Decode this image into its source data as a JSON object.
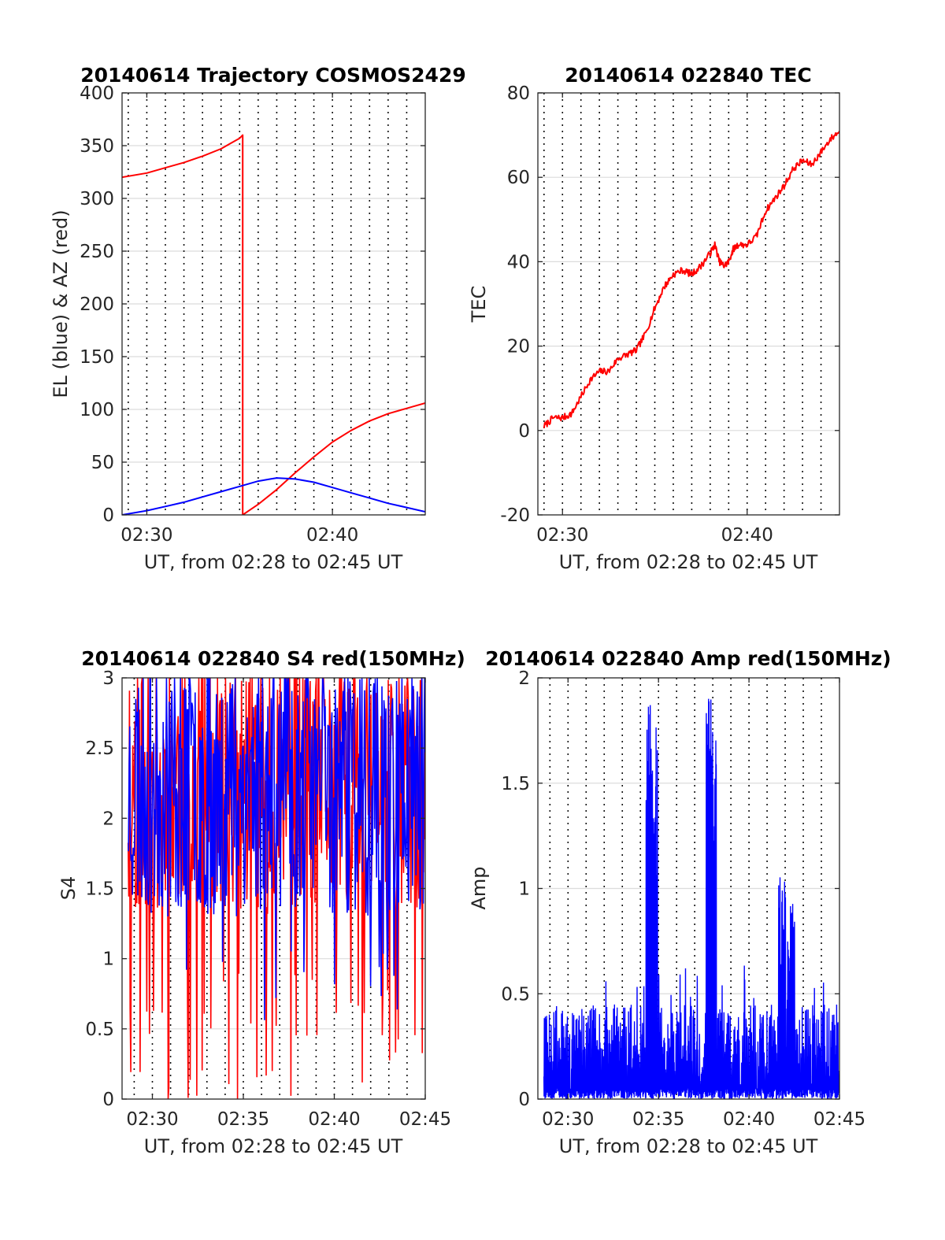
{
  "chart_data": [
    {
      "type": "line",
      "title": "20140614 Trajectory COSMOS2429",
      "xlabel": "UT, from 02:28 to 02:45 UT",
      "ylabel": "EL (blue) & AZ (red)",
      "xlim": [
        "02:28:40",
        "02:45:00"
      ],
      "ylim": [
        0,
        400
      ],
      "xticks": [
        "02:30",
        "02:40"
      ],
      "yticks": [
        0,
        50,
        100,
        150,
        200,
        250,
        300,
        350,
        400
      ],
      "grid": true,
      "colors": {
        "az": "#ff0000",
        "el": "#0000ff"
      },
      "series": [
        {
          "color": "#ff0000",
          "x": [
            "02:28:40",
            "02:30:00",
            "02:31:00",
            "02:32:00",
            "02:33:00",
            "02:34:00",
            "02:34:30",
            "02:35:00",
            "02:35:10",
            "02:35:10",
            "02:35:30",
            "02:36:00",
            "02:37:00",
            "02:38:00",
            "02:39:00",
            "02:40:00",
            "02:41:00",
            "02:42:00",
            "02:43:00",
            "02:44:00",
            "02:45:00"
          ],
          "values": [
            320,
            324,
            329,
            334,
            340,
            347,
            352,
            357,
            360,
            0,
            4,
            10,
            24,
            40,
            55,
            69,
            80,
            89,
            96,
            101,
            106
          ]
        },
        {
          "color": "#0000ff",
          "x": [
            "02:28:40",
            "02:30:00",
            "02:31:00",
            "02:32:00",
            "02:33:00",
            "02:34:00",
            "02:35:00",
            "02:36:00",
            "02:36:40",
            "02:37:00",
            "02:38:00",
            "02:39:00",
            "02:40:00",
            "02:41:00",
            "02:42:00",
            "02:43:00",
            "02:44:00",
            "02:45:00"
          ],
          "values": [
            0,
            4,
            8,
            12,
            17,
            22,
            27,
            32,
            34,
            35,
            34,
            31,
            26,
            21,
            16,
            11,
            7,
            3
          ]
        }
      ]
    },
    {
      "type": "line",
      "title": "20140614 022840 TEC",
      "xlabel": "UT, from 02:28 to 02:45 UT",
      "ylabel": "TEC",
      "xlim": [
        "02:28:40",
        "02:45:00"
      ],
      "ylim": [
        -20,
        80
      ],
      "xticks": [
        "02:30",
        "02:40"
      ],
      "yticks": [
        -20,
        0,
        20,
        40,
        60,
        80
      ],
      "grid": true,
      "series": [
        {
          "color": "#ff0000",
          "x": [
            "02:29:00",
            "02:29:30",
            "02:30:00",
            "02:30:30",
            "02:31:00",
            "02:31:30",
            "02:32:00",
            "02:32:30",
            "02:33:00",
            "02:33:30",
            "02:34:00",
            "02:34:30",
            "02:35:00",
            "02:35:30",
            "02:36:00",
            "02:36:30",
            "02:37:00",
            "02:37:30",
            "02:38:00",
            "02:38:15",
            "02:38:30",
            "02:38:45",
            "02:39:00",
            "02:39:15",
            "02:39:30",
            "02:40:00",
            "02:40:30",
            "02:41:00",
            "02:41:30",
            "02:42:00",
            "02:42:30",
            "02:43:00",
            "02:43:30",
            "02:44:00",
            "02:44:30",
            "02:45:00"
          ],
          "values": [
            1,
            3,
            3,
            4,
            8,
            12,
            14,
            14,
            17,
            18,
            19,
            23,
            29,
            34,
            37,
            38,
            37,
            39,
            42,
            44,
            40,
            39,
            40,
            43,
            44,
            44,
            46,
            52,
            55,
            58,
            62,
            64,
            63,
            66,
            69,
            71
          ]
        }
      ]
    },
    {
      "type": "line",
      "title": "20140614 022840 S4 red(150MHz)",
      "xlabel": "UT, from 02:28 to 02:45 UT",
      "ylabel": "S4",
      "xlim": [
        "02:28:20",
        "02:45:00"
      ],
      "ylim": [
        0,
        3
      ],
      "xticks": [
        "02:30",
        "02:35",
        "02:40",
        "02:45"
      ],
      "yticks": [
        0,
        0.5,
        1,
        1.5,
        2,
        2.5,
        3
      ],
      "grid": true,
      "series": [
        {
          "color": "#ff0000",
          "note_values": "noisy signal between 0 and 3"
        },
        {
          "color": "#0000ff",
          "note_values": "noisy signal mostly between 1.2 and 3"
        }
      ]
    },
    {
      "type": "line",
      "title": "20140614 022840 Amp red(150MHz)",
      "xlabel": "UT, from 02:28 to 02:45 UT",
      "ylabel": "Amp",
      "xlim": [
        "02:28:20",
        "02:45:00"
      ],
      "ylim": [
        0,
        2
      ],
      "xticks": [
        "02:30",
        "02:35",
        "02:40",
        "02:45"
      ],
      "yticks": [
        0,
        0.5,
        1,
        1.5,
        2
      ],
      "grid": true,
      "series": [
        {
          "color": "#0000ff",
          "peaks_x": [
            "02:34:30",
            "02:34:45",
            "02:37:50",
            "02:38:00",
            "02:41:50",
            "02:42:20"
          ],
          "peaks_values": [
            1.88,
            1.84,
            1.93,
            1.72,
            1.06,
            1.05
          ]
        }
      ]
    }
  ]
}
